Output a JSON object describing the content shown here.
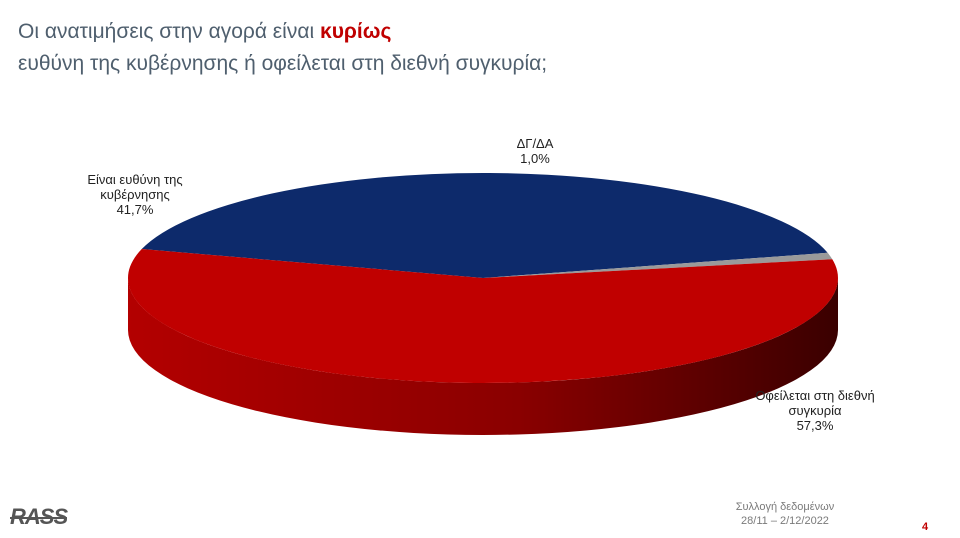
{
  "header": {
    "title_line1_prefix": "Οι ανατιμήσεις στην αγορά είναι ",
    "title_line1_emphasis": "κυρίως",
    "title_line2": "ευθύνη της κυβέρνησης ή οφείλεται στη διεθνή συγκυρία;"
  },
  "chart_data": {
    "type": "pie",
    "style": "3d",
    "slices": [
      {
        "label_lines": [
          "Είναι ευθύνη της",
          "κυβέρνησης"
        ],
        "value": 41.7,
        "value_label": "41,7%",
        "color": "#0d2a6b"
      },
      {
        "label_lines": [
          "ΔΓ/ΔΑ"
        ],
        "value": 1.0,
        "value_label": "1,0%",
        "color": "#9a9a9a"
      },
      {
        "label_lines": [
          "Οφείλεται στη διεθνή",
          "συγκυρία"
        ],
        "value": 57.3,
        "value_label": "57,3%",
        "color": "#c00000"
      }
    ]
  },
  "footer": {
    "logo_text": "RASS",
    "collection_label": "Συλλογή δεδομένων",
    "collection_dates": "28/11 – 2/12/2022",
    "page_number": "4"
  }
}
